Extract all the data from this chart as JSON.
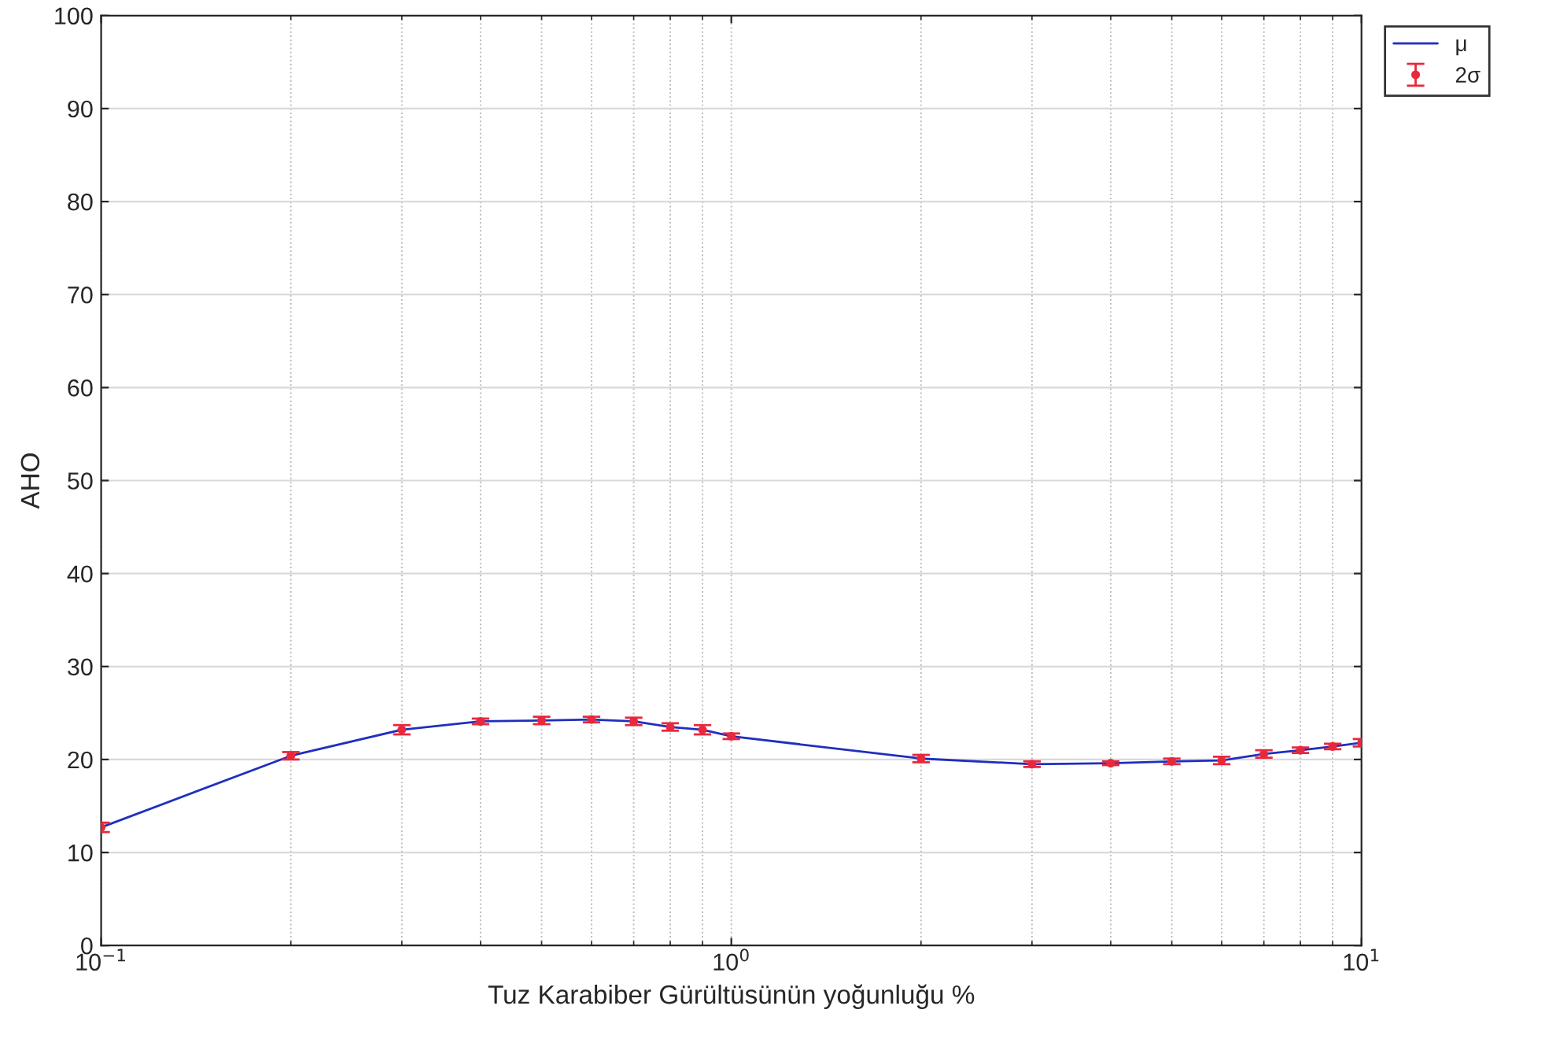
{
  "chart_data": {
    "type": "line",
    "xlabel": "Tuz Karabiber Gürültüsünün yoğunluğu %",
    "ylabel": "AHO",
    "x": [
      0.1,
      0.2,
      0.3,
      0.4,
      0.5,
      0.6,
      0.7,
      0.8,
      0.9,
      1,
      2,
      3,
      4,
      5,
      6,
      7,
      8,
      9,
      10
    ],
    "series": [
      {
        "name": "μ",
        "color": "#1f2fbf",
        "values": [
          12.7,
          20.4,
          23.2,
          24.1,
          24.2,
          24.3,
          24.1,
          23.5,
          23.2,
          22.5,
          20.1,
          19.5,
          19.6,
          19.8,
          19.9,
          20.6,
          21.0,
          21.4,
          21.8
        ]
      },
      {
        "name": "2σ",
        "type": "scatter",
        "marker": "circle",
        "color": "#e8283c",
        "values": [
          12.7,
          20.4,
          23.2,
          24.1,
          24.2,
          24.3,
          24.1,
          23.5,
          23.2,
          22.5,
          20.1,
          19.5,
          19.6,
          19.8,
          19.9,
          20.6,
          21.0,
          21.4,
          21.8
        ],
        "errors": [
          0.5,
          0.4,
          0.5,
          0.3,
          0.4,
          0.3,
          0.4,
          0.4,
          0.5,
          0.3,
          0.4,
          0.3,
          0.2,
          0.3,
          0.4,
          0.4,
          0.3,
          0.3,
          0.4
        ]
      }
    ],
    "log": "x",
    "xlim": [
      0.1,
      10
    ],
    "xticks": [
      {
        "value": 0.1,
        "label": "10$^{−1}$"
      },
      {
        "value": 1,
        "label": "10$^{0}$"
      },
      {
        "value": 10,
        "label": "10$^{1}$"
      }
    ],
    "ylim": [
      0,
      100
    ],
    "yticks": [
      0,
      10,
      20,
      30,
      40,
      50,
      60,
      70,
      80,
      90,
      100
    ],
    "grid": true,
    "legend": "top right"
  }
}
